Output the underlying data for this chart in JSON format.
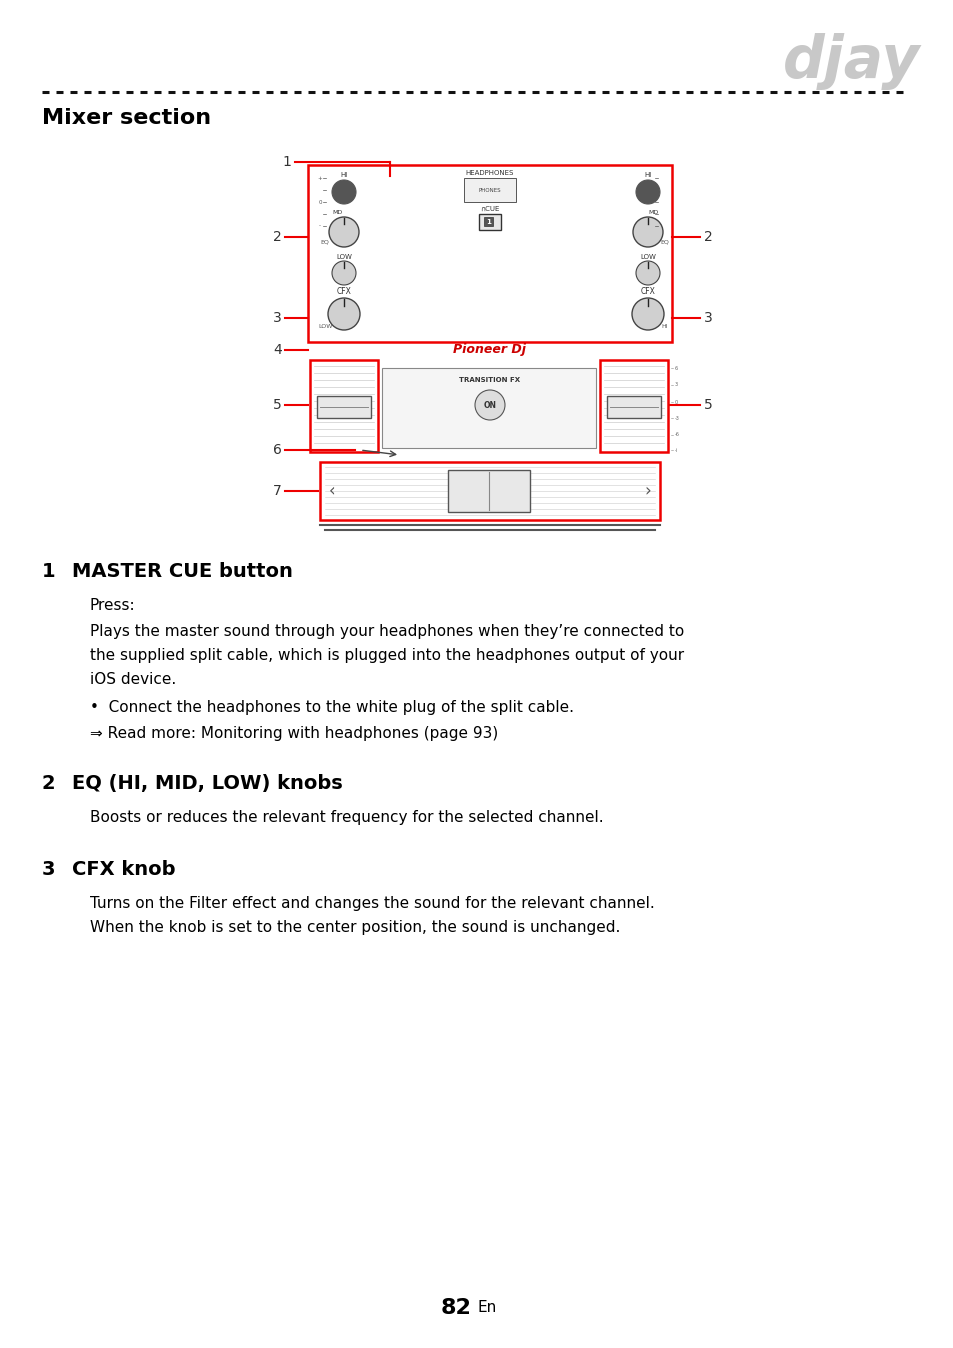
{
  "page_title": "djay",
  "section_title": "Mixer section",
  "page_number": "82",
  "page_number_suffix": "En",
  "items": [
    {
      "number": "1",
      "heading": "MASTER CUE button",
      "sub_label": "Press:",
      "paragraphs": [
        "Plays the master sound through your headphones when they’re connected to\nthe supplied split cable, which is plugged into the headphones output of your\niOS device."
      ],
      "bullets": [
        "•  Connect the headphones to the white plug of the split cable.",
        "⇒ Read more: Monitoring with headphones (page 93)"
      ]
    },
    {
      "number": "2",
      "heading": "EQ (HI, MID, LOW) knobs",
      "sub_label": "",
      "paragraphs": [
        "Boosts or reduces the relevant frequency for the selected channel."
      ],
      "bullets": []
    },
    {
      "number": "3",
      "heading": "CFX knob",
      "sub_label": "",
      "paragraphs": [
        "Turns on the Filter effect and changes the sound for the relevant channel.\nWhen the knob is set to the center position, the sound is unchanged."
      ],
      "bullets": []
    }
  ],
  "bg_color": "#ffffff",
  "text_color": "#000000",
  "heading_color": "#000000",
  "title_color": "#c8c8c8",
  "red_color": "#ee0000",
  "dashed_color": "#111111"
}
